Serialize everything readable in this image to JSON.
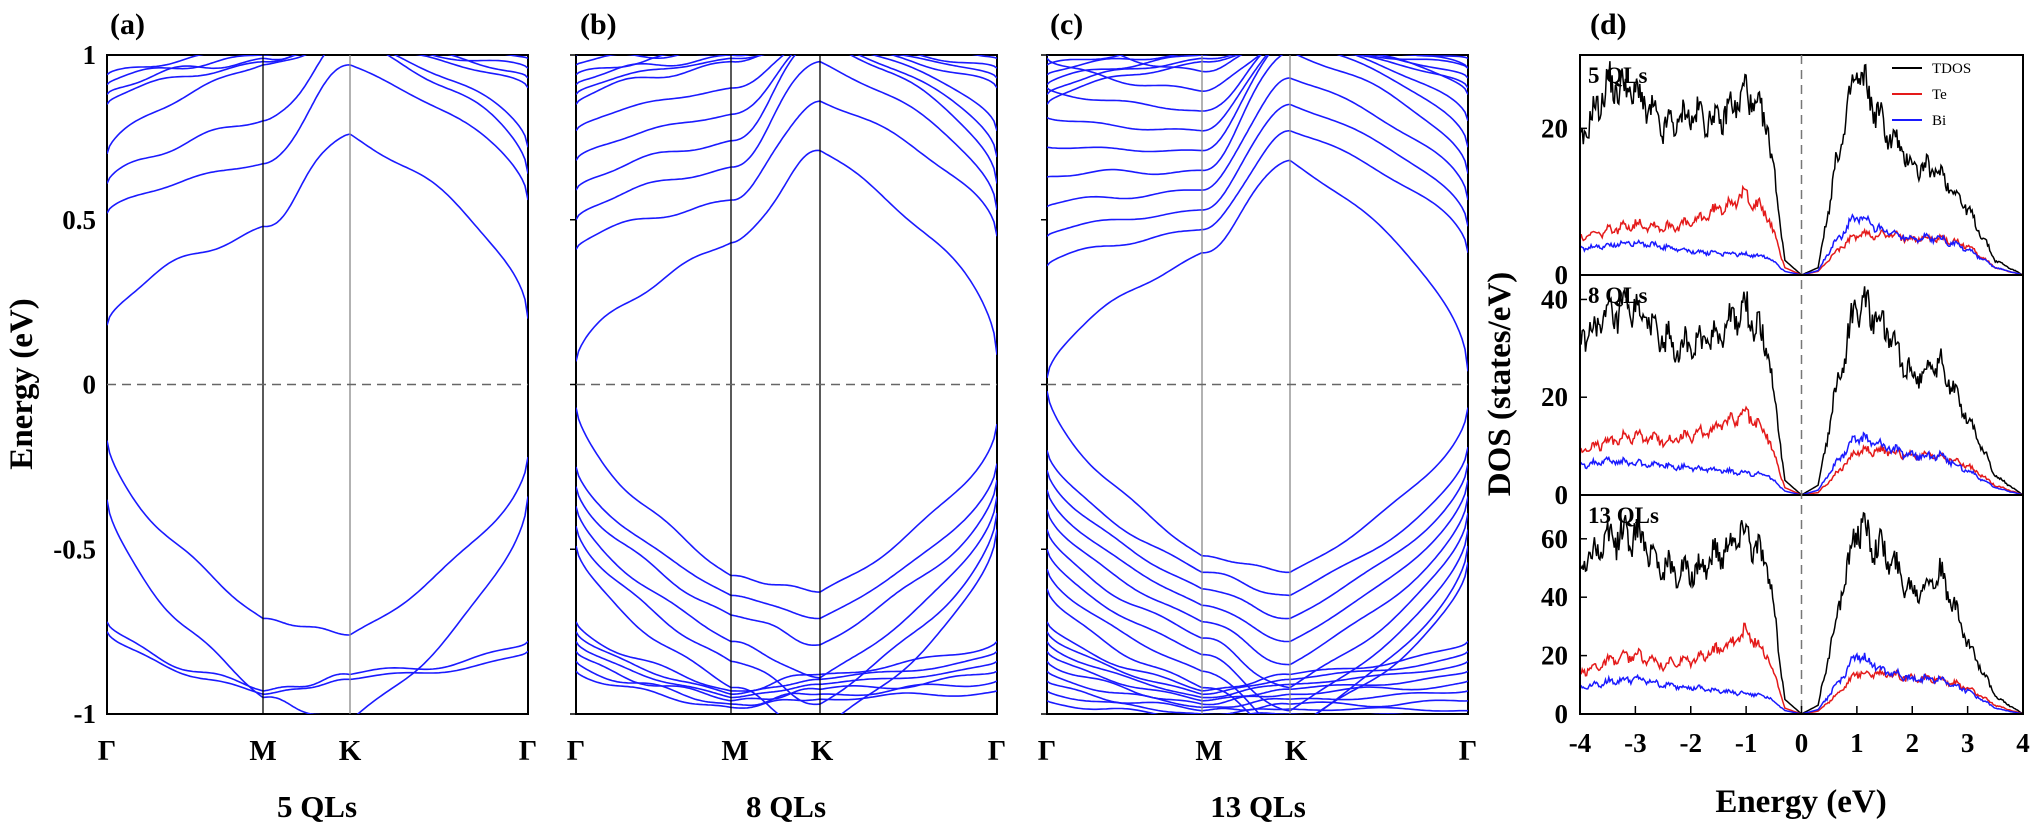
{
  "figure": {
    "band_panels": [
      {
        "panel_label": "(a)",
        "caption": "5 QLs"
      },
      {
        "panel_label": "(b)",
        "caption": "8 QLs"
      },
      {
        "panel_label": "(c)",
        "caption": "13 QLs"
      }
    ],
    "dos_panel_label": "(d)"
  },
  "chart_data": [
    {
      "type": "line",
      "subtype": "band_structure",
      "panel": "(a)",
      "caption": "5 QLs",
      "ylabel": "Energy (eV)",
      "ylim": [
        -1,
        1
      ],
      "yticks": [
        "1",
        "0.5",
        "0",
        "-0.5",
        "-1"
      ],
      "kpath": [
        "Γ",
        "M",
        "K",
        "Γ"
      ],
      "fermi_level": 0,
      "color": "#1a1aff",
      "conduction_band_min": 0.18,
      "valence_band_max": -0.17,
      "conduction_bands_at_M": [
        0.48,
        0.67,
        0.8,
        0.97
      ],
      "valence_bands_at_M": [
        -0.71,
        -0.95
      ]
    },
    {
      "type": "line",
      "subtype": "band_structure",
      "panel": "(b)",
      "caption": "8 QLs",
      "ylim": [
        -1,
        1
      ],
      "kpath": [
        "Γ",
        "M",
        "K",
        "Γ"
      ],
      "fermi_level": 0,
      "color": "#1a1aff",
      "conduction_band_min": 0.07,
      "valence_band_max": -0.07,
      "conduction_bands_at_M": [
        0.43,
        0.56,
        0.66,
        0.74,
        0.82,
        0.9
      ],
      "valence_bands_at_M": [
        -0.58,
        -0.64,
        -0.7,
        -0.78,
        -0.84,
        -0.92
      ]
    },
    {
      "type": "line",
      "subtype": "band_structure",
      "panel": "(c)",
      "caption": "13 QLs",
      "ylim": [
        -1,
        1
      ],
      "kpath": [
        "Γ",
        "M",
        "K",
        "Γ"
      ],
      "fermi_level": 0,
      "color": "#1a1aff",
      "conduction_band_min": 0.02,
      "valence_band_max": -0.02,
      "conduction_bands_at_M": [
        0.4,
        0.47,
        0.53,
        0.59,
        0.65,
        0.71,
        0.77,
        0.83,
        0.89,
        0.95
      ],
      "valence_bands_at_M": [
        -0.52,
        -0.57,
        -0.62,
        -0.67,
        -0.72,
        -0.77,
        -0.82,
        -0.87,
        -0.92
      ]
    },
    {
      "type": "line",
      "subtype": "density_of_states",
      "panel": "(d)",
      "xlabel": "Energy (eV)",
      "ylabel": "DOS (states/eV)",
      "xlim": [
        -4,
        4
      ],
      "xticks": [
        "-4",
        "-3",
        "-2",
        "-1",
        "0",
        "1",
        "2",
        "3",
        "4"
      ],
      "legend": [
        {
          "name": "TDOS",
          "color": "#000000"
        },
        {
          "name": "Te",
          "color": "#e41a1a"
        },
        {
          "name": "Bi",
          "color": "#1a1aff"
        }
      ],
      "legend_position": "top-right",
      "subplots": [
        {
          "label": "5 QLs",
          "ylim": [
            0,
            30
          ],
          "yticks": [
            "0",
            "20"
          ],
          "x": [
            -4,
            -3.5,
            -3,
            -2.5,
            -2,
            -1.5,
            -1,
            -0.6,
            -0.3,
            0,
            0.3,
            0.6,
            1,
            1.5,
            2,
            2.5,
            3,
            3.5,
            4
          ],
          "series": [
            {
              "name": "TDOS",
              "values": [
                18,
                26,
                25,
                20,
                22,
                21,
                25,
                20,
                2,
                0,
                1,
                14,
                28,
                20,
                15,
                14,
                9,
                2,
                0
              ]
            },
            {
              "name": "Te",
              "values": [
                5,
                6,
                7,
                6.5,
                7,
                9,
                11,
                8,
                1,
                0,
                0.5,
                3,
                5.5,
                5.5,
                5,
                5,
                4,
                1,
                0
              ]
            },
            {
              "name": "Bi",
              "values": [
                3.5,
                4,
                4.5,
                3.8,
                3.2,
                3,
                2.8,
                2.5,
                0.5,
                0,
                0.6,
                4.5,
                8,
                6,
                5,
                5,
                3.5,
                1,
                0
              ]
            }
          ]
        },
        {
          "label": "8 QLs",
          "ylim": [
            0,
            45
          ],
          "yticks": [
            "0",
            "20",
            "40"
          ],
          "x": [
            -4,
            -3.5,
            -3,
            -2.5,
            -2,
            -1.5,
            -1,
            -0.6,
            -0.3,
            0,
            0.3,
            0.6,
            1,
            1.5,
            2,
            2.5,
            3,
            3.5,
            4
          ],
          "series": [
            {
              "name": "TDOS",
              "values": [
                32,
                36,
                38,
                32,
                30,
                33,
                38,
                30,
                3,
                0,
                2,
                20,
                40,
                34,
                24,
                27,
                16,
                4,
                0
              ]
            },
            {
              "name": "Te",
              "values": [
                9,
                11,
                12,
                11,
                12,
                14,
                17,
                12,
                1.5,
                0,
                0.5,
                4,
                9,
                9,
                8,
                8,
                6,
                2,
                0
              ]
            },
            {
              "name": "Bi",
              "values": [
                6,
                7,
                6.5,
                6,
                5.5,
                5,
                4.5,
                4,
                0.8,
                0,
                1,
                6,
                12,
                10,
                8,
                8,
                5,
                1.5,
                0
              ]
            }
          ]
        },
        {
          "label": "13 QLs",
          "ylim": [
            0,
            75
          ],
          "yticks": [
            "0",
            "20",
            "40",
            "60"
          ],
          "x": [
            -4,
            -3.5,
            -3,
            -2.5,
            -2,
            -1.5,
            -1,
            -0.6,
            -0.3,
            0,
            0.3,
            0.6,
            1,
            1.5,
            2,
            2.5,
            3,
            3.5,
            4
          ],
          "series": [
            {
              "name": "TDOS",
              "values": [
                50,
                60,
                62,
                50,
                48,
                55,
                63,
                50,
                5,
                0,
                3,
                30,
                65,
                55,
                42,
                48,
                25,
                6,
                0
              ]
            },
            {
              "name": "Te",
              "values": [
                14,
                18,
                20,
                17,
                18,
                22,
                28,
                20,
                2,
                0,
                1,
                6,
                14,
                14,
                12,
                12,
                9,
                3,
                0
              ]
            },
            {
              "name": "Bi",
              "values": [
                9,
                11,
                12,
                10,
                9,
                8,
                7,
                6,
                1.2,
                0,
                1.5,
                9,
                20,
                15,
                12,
                12,
                8,
                2,
                0
              ]
            }
          ]
        }
      ]
    }
  ]
}
